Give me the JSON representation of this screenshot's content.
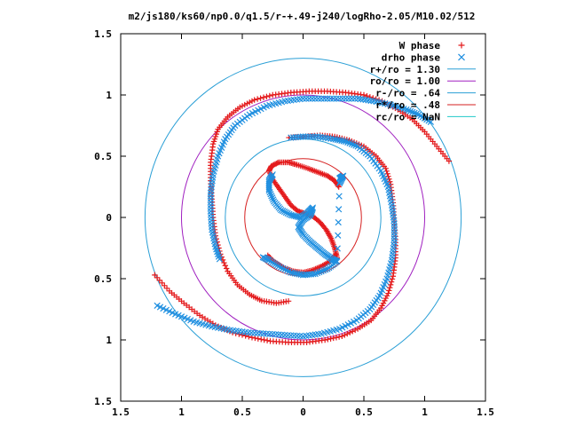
{
  "chart_data": {
    "type": "scatter",
    "title": "m2/js180/ks60/np0.0/q1.5/r-+.49-j240/logRho-2.05/M10.02/512",
    "xlabel": "",
    "ylabel": "",
    "xlim": [
      -1.5,
      1.5
    ],
    "ylim": [
      -1.5,
      1.5
    ],
    "x_ticks": [
      "1.5",
      "1",
      "0.5",
      "0",
      "0.5",
      "1",
      "1.5"
    ],
    "y_ticks": [
      "1.5",
      "1",
      "0.5",
      "0",
      "0.5",
      "1",
      "1.5"
    ],
    "tick_values": [
      -1.5,
      -1,
      -0.5,
      0,
      0.5,
      1,
      1.5
    ],
    "grid": false,
    "legend_position": "top-right",
    "series": [
      {
        "name": "W phase",
        "marker": "plus",
        "color": "#e41a1c",
        "arms": [
          [
            [
              1.2,
              0.46
            ],
            [
              1.1,
              0.58
            ],
            [
              1.0,
              0.7
            ],
            [
              0.9,
              0.8
            ],
            [
              0.78,
              0.88
            ],
            [
              0.65,
              0.95
            ],
            [
              0.5,
              1.0
            ],
            [
              0.35,
              1.02
            ],
            [
              0.2,
              1.03
            ],
            [
              0.05,
              1.03
            ],
            [
              -0.1,
              1.02
            ],
            [
              -0.25,
              1.0
            ],
            [
              -0.4,
              0.96
            ],
            [
              -0.52,
              0.9
            ],
            [
              -0.62,
              0.82
            ],
            [
              -0.7,
              0.72
            ],
            [
              -0.74,
              0.6
            ],
            [
              -0.76,
              0.45
            ],
            [
              -0.76,
              0.3
            ],
            [
              -0.75,
              0.15
            ],
            [
              -0.74,
              0.0
            ],
            [
              -0.72,
              -0.15
            ],
            [
              -0.68,
              -0.3
            ],
            [
              -0.62,
              -0.44
            ],
            [
              -0.54,
              -0.55
            ],
            [
              -0.44,
              -0.63
            ],
            [
              -0.34,
              -0.68
            ],
            [
              -0.22,
              -0.7
            ],
            [
              -0.1,
              -0.68
            ]
          ],
          [
            [
              -1.22,
              -0.47
            ],
            [
              -1.1,
              -0.6
            ],
            [
              -0.98,
              -0.7
            ],
            [
              -0.85,
              -0.8
            ],
            [
              -0.72,
              -0.88
            ],
            [
              -0.58,
              -0.94
            ],
            [
              -0.42,
              -0.98
            ],
            [
              -0.27,
              -1.01
            ],
            [
              -0.12,
              -1.02
            ],
            [
              0.03,
              -1.02
            ],
            [
              0.18,
              -1.0
            ],
            [
              0.32,
              -0.97
            ],
            [
              0.45,
              -0.91
            ],
            [
              0.56,
              -0.84
            ],
            [
              0.64,
              -0.74
            ],
            [
              0.7,
              -0.62
            ],
            [
              0.74,
              -0.48
            ],
            [
              0.76,
              -0.33
            ],
            [
              0.76,
              -0.18
            ],
            [
              0.75,
              -0.03
            ],
            [
              0.74,
              0.12
            ],
            [
              0.72,
              0.27
            ],
            [
              0.68,
              0.4
            ],
            [
              0.6,
              0.5
            ],
            [
              0.5,
              0.58
            ],
            [
              0.38,
              0.63
            ],
            [
              0.26,
              0.66
            ],
            [
              0.14,
              0.67
            ],
            [
              0.0,
              0.66
            ],
            [
              -0.14,
              0.65
            ]
          ],
          [
            [
              0.28,
              -0.33
            ],
            [
              0.26,
              -0.25
            ],
            [
              0.23,
              -0.17
            ],
            [
              0.19,
              -0.1
            ],
            [
              0.14,
              -0.04
            ],
            [
              0.08,
              0.01
            ],
            [
              0.02,
              0.03
            ],
            [
              -0.04,
              0.05
            ],
            [
              -0.1,
              0.1
            ],
            [
              -0.15,
              0.17
            ],
            [
              -0.2,
              0.24
            ],
            [
              -0.25,
              0.31
            ],
            [
              -0.28,
              0.38
            ],
            [
              -0.26,
              0.42
            ],
            [
              -0.2,
              0.45
            ],
            [
              -0.12,
              0.45
            ],
            [
              -0.05,
              0.43
            ],
            [
              0.04,
              0.4
            ],
            [
              0.12,
              0.37
            ],
            [
              0.2,
              0.34
            ],
            [
              0.26,
              0.3
            ],
            [
              0.3,
              0.24
            ]
          ],
          [
            [
              0.27,
              -0.3
            ],
            [
              0.22,
              -0.36
            ],
            [
              0.15,
              -0.4
            ],
            [
              0.08,
              -0.43
            ],
            [
              0.0,
              -0.45
            ],
            [
              -0.08,
              -0.44
            ],
            [
              -0.16,
              -0.41
            ],
            [
              -0.24,
              -0.36
            ],
            [
              -0.3,
              -0.3
            ]
          ]
        ]
      },
      {
        "name": "drho phase",
        "marker": "cross",
        "color": "#1f8fe0",
        "arms": [
          [
            [
              1.05,
              0.78
            ],
            [
              0.95,
              0.84
            ],
            [
              0.85,
              0.88
            ],
            [
              0.72,
              0.92
            ],
            [
              0.58,
              0.95
            ],
            [
              0.45,
              0.97
            ],
            [
              0.3,
              0.97
            ],
            [
              0.15,
              0.97
            ],
            [
              0.0,
              0.97
            ],
            [
              -0.15,
              0.95
            ],
            [
              -0.3,
              0.91
            ],
            [
              -0.44,
              0.84
            ],
            [
              -0.56,
              0.75
            ],
            [
              -0.64,
              0.64
            ],
            [
              -0.7,
              0.5
            ],
            [
              -0.74,
              0.35
            ],
            [
              -0.76,
              0.2
            ],
            [
              -0.76,
              0.05
            ],
            [
              -0.75,
              -0.1
            ],
            [
              -0.72,
              -0.24
            ],
            [
              -0.68,
              -0.36
            ]
          ],
          [
            [
              -1.2,
              -0.72
            ],
            [
              -1.05,
              -0.79
            ],
            [
              -0.9,
              -0.85
            ],
            [
              -0.75,
              -0.89
            ],
            [
              -0.6,
              -0.92
            ],
            [
              -0.45,
              -0.94
            ],
            [
              -0.3,
              -0.95
            ],
            [
              -0.15,
              -0.96
            ],
            [
              0.0,
              -0.97
            ],
            [
              0.15,
              -0.95
            ],
            [
              0.3,
              -0.91
            ],
            [
              0.44,
              -0.84
            ],
            [
              0.55,
              -0.75
            ],
            [
              0.63,
              -0.64
            ],
            [
              0.69,
              -0.5
            ],
            [
              0.73,
              -0.35
            ],
            [
              0.75,
              -0.2
            ],
            [
              0.75,
              -0.05
            ],
            [
              0.73,
              0.1
            ],
            [
              0.7,
              0.25
            ],
            [
              0.64,
              0.38
            ],
            [
              0.55,
              0.5
            ],
            [
              0.45,
              0.58
            ],
            [
              0.35,
              0.62
            ],
            [
              0.25,
              0.64
            ],
            [
              0.12,
              0.66
            ],
            [
              0.0,
              0.66
            ],
            [
              -0.12,
              0.65
            ]
          ],
          [
            [
              -0.25,
              0.35
            ],
            [
              -0.28,
              0.3
            ],
            [
              -0.28,
              0.22
            ],
            [
              -0.24,
              0.13
            ],
            [
              -0.18,
              0.06
            ],
            [
              -0.1,
              0.02
            ],
            [
              -0.02,
              0.0
            ],
            [
              0.04,
              0.04
            ],
            [
              0.08,
              0.08
            ],
            [
              0.06,
              0.02
            ],
            [
              0.0,
              -0.02
            ],
            [
              -0.04,
              -0.08
            ],
            [
              0.0,
              -0.14
            ],
            [
              0.06,
              -0.2
            ],
            [
              0.12,
              -0.25
            ],
            [
              0.18,
              -0.3
            ],
            [
              0.24,
              -0.34
            ],
            [
              0.28,
              -0.36
            ]
          ],
          [
            [
              0.3,
              0.32
            ],
            [
              0.33,
              0.34
            ],
            [
              0.3,
              0.28
            ],
            [
              0.28,
              -0.36
            ],
            [
              0.2,
              -0.42
            ],
            [
              0.1,
              -0.46
            ],
            [
              0.0,
              -0.47
            ],
            [
              -0.1,
              -0.45
            ],
            [
              -0.2,
              -0.4
            ],
            [
              -0.28,
              -0.35
            ],
            [
              -0.34,
              -0.32
            ]
          ]
        ]
      }
    ],
    "circles": [
      {
        "label": "r+/ro = 1.30",
        "r": 1.3,
        "color": "#2a9fd6"
      },
      {
        "label": "ro/ro = 1.00",
        "r": 1.0,
        "color": "#a020c0"
      },
      {
        "label": "r-/ro = .64",
        "r": 0.64,
        "color": "#2a9fd6"
      },
      {
        "label": "r*/ro = .48",
        "r": 0.48,
        "color": "#d62020"
      },
      {
        "label": "rc/ro = NaN",
        "r": null,
        "color": "#20c8c8"
      }
    ]
  }
}
